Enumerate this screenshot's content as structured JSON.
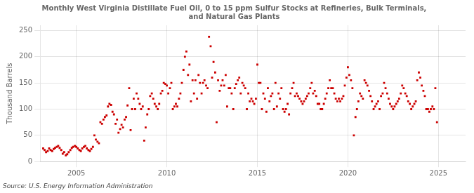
{
  "chart_data": {
    "type": "scatter",
    "title": "Monthly West Virginia Distillate Fuel Oil, 0 to 15 ppm Sulfur Stocks at Refineries, Bulk Terminals,\nand Natural Gas Plants",
    "ylabel": "Thousand Barrels",
    "annotations": [
      "Source: U.S. Energy Information Administration"
    ],
    "color": "#cc0000",
    "marker": "square",
    "grid": true,
    "xlim": [
      2003.0,
      2026.5
    ],
    "ylim": [
      0,
      260
    ],
    "xticks": [
      2005,
      2010,
      2015,
      2020,
      2025
    ],
    "yticks": [
      0,
      50,
      100,
      150,
      200,
      250
    ],
    "x": [
      2003.17,
      2003.25,
      2003.33,
      2003.42,
      2003.5,
      2003.58,
      2003.67,
      2003.75,
      2003.83,
      2003.92,
      2004.0,
      2004.08,
      2004.17,
      2004.25,
      2004.33,
      2004.42,
      2004.5,
      2004.58,
      2004.67,
      2004.75,
      2004.83,
      2004.92,
      2005.0,
      2005.08,
      2005.17,
      2005.25,
      2005.33,
      2005.42,
      2005.5,
      2005.58,
      2005.67,
      2005.75,
      2005.83,
      2005.92,
      2006.0,
      2006.08,
      2006.17,
      2006.25,
      2006.33,
      2006.42,
      2006.5,
      2006.58,
      2006.67,
      2006.75,
      2006.83,
      2006.92,
      2007.0,
      2007.08,
      2007.17,
      2007.25,
      2007.33,
      2007.42,
      2007.5,
      2007.58,
      2007.67,
      2007.75,
      2007.83,
      2007.92,
      2008.0,
      2008.08,
      2008.17,
      2008.25,
      2008.33,
      2008.42,
      2008.5,
      2008.58,
      2008.67,
      2008.75,
      2008.83,
      2008.92,
      2009.0,
      2009.08,
      2009.17,
      2009.25,
      2009.33,
      2009.42,
      2009.5,
      2009.58,
      2009.67,
      2009.75,
      2009.83,
      2009.92,
      2010.0,
      2010.08,
      2010.17,
      2010.25,
      2010.33,
      2010.42,
      2010.5,
      2010.58,
      2010.67,
      2010.75,
      2010.83,
      2010.92,
      2011.0,
      2011.08,
      2011.17,
      2011.25,
      2011.33,
      2011.42,
      2011.5,
      2011.58,
      2011.67,
      2011.75,
      2011.83,
      2011.92,
      2012.0,
      2012.08,
      2012.17,
      2012.25,
      2012.33,
      2012.42,
      2012.5,
      2012.58,
      2012.67,
      2012.75,
      2012.83,
      2012.92,
      2013.0,
      2013.08,
      2013.17,
      2013.25,
      2013.33,
      2013.42,
      2013.5,
      2013.58,
      2013.67,
      2013.75,
      2013.83,
      2013.92,
      2014.0,
      2014.08,
      2014.17,
      2014.25,
      2014.33,
      2014.42,
      2014.5,
      2014.58,
      2014.67,
      2014.75,
      2014.83,
      2014.92,
      2015.0,
      2015.08,
      2015.17,
      2015.25,
      2015.33,
      2015.42,
      2015.5,
      2015.58,
      2015.67,
      2015.75,
      2015.83,
      2015.92,
      2016.0,
      2016.08,
      2016.17,
      2016.25,
      2016.33,
      2016.42,
      2016.5,
      2016.58,
      2016.67,
      2016.75,
      2016.83,
      2016.92,
      2017.0,
      2017.08,
      2017.17,
      2017.25,
      2017.33,
      2017.42,
      2017.5,
      2017.58,
      2017.67,
      2017.75,
      2017.83,
      2017.92,
      2018.0,
      2018.08,
      2018.17,
      2018.25,
      2018.33,
      2018.42,
      2018.5,
      2018.58,
      2018.67,
      2018.75,
      2018.83,
      2018.92,
      2019.0,
      2019.08,
      2019.17,
      2019.25,
      2019.33,
      2019.42,
      2019.5,
      2019.58,
      2019.67,
      2019.75,
      2019.83,
      2019.92,
      2020.0,
      2020.08,
      2020.17,
      2020.25,
      2020.33,
      2020.42,
      2020.5,
      2020.58,
      2020.67,
      2020.75,
      2020.83,
      2020.92,
      2021.0,
      2021.08,
      2021.17,
      2021.25,
      2021.33,
      2021.42,
      2021.5,
      2021.58,
      2021.67,
      2021.75,
      2021.83,
      2021.92,
      2022.0,
      2022.08,
      2022.17,
      2022.25,
      2022.33,
      2022.42,
      2022.5,
      2022.58,
      2022.67,
      2022.75,
      2022.83,
      2022.92,
      2023.0,
      2023.08,
      2023.17,
      2023.25,
      2023.33,
      2023.42,
      2023.5,
      2023.58,
      2023.67,
      2023.75,
      2023.83,
      2023.92,
      2024.0,
      2024.08,
      2024.17,
      2024.25,
      2024.33,
      2024.42,
      2024.5,
      2024.58,
      2024.67,
      2024.75,
      2024.83,
      2024.92
    ],
    "values": [
      25,
      22,
      18,
      20,
      25,
      22,
      20,
      24,
      26,
      28,
      30,
      26,
      22,
      15,
      18,
      12,
      14,
      18,
      22,
      26,
      28,
      30,
      28,
      25,
      22,
      20,
      25,
      28,
      30,
      25,
      22,
      20,
      24,
      28,
      50,
      42,
      38,
      35,
      75,
      72,
      80,
      85,
      88,
      105,
      110,
      108,
      95,
      90,
      72,
      80,
      55,
      62,
      70,
      65,
      80,
      85,
      107,
      140,
      60,
      100,
      120,
      100,
      130,
      120,
      110,
      100,
      105,
      40,
      65,
      90,
      100,
      125,
      130,
      120,
      110,
      105,
      100,
      110,
      130,
      135,
      150,
      148,
      145,
      130,
      140,
      150,
      100,
      105,
      110,
      105,
      120,
      130,
      150,
      175,
      200,
      210,
      165,
      185,
      115,
      155,
      130,
      155,
      120,
      165,
      150,
      130,
      150,
      155,
      145,
      140,
      238,
      220,
      160,
      190,
      170,
      75,
      155,
      135,
      145,
      155,
      145,
      165,
      105,
      140,
      140,
      130,
      100,
      140,
      148,
      155,
      160,
      130,
      150,
      145,
      140,
      100,
      130,
      115,
      120,
      115,
      110,
      120,
      185,
      150,
      150,
      100,
      130,
      120,
      95,
      140,
      115,
      125,
      130,
      100,
      150,
      105,
      130,
      120,
      140,
      100,
      95,
      100,
      110,
      90,
      130,
      140,
      150,
      125,
      130,
      125,
      120,
      115,
      110,
      115,
      120,
      125,
      130,
      140,
      150,
      130,
      135,
      125,
      110,
      110,
      100,
      100,
      110,
      120,
      130,
      140,
      155,
      140,
      140,
      130,
      120,
      115,
      120,
      115,
      120,
      125,
      145,
      160,
      180,
      165,
      155,
      140,
      50,
      85,
      100,
      115,
      130,
      125,
      120,
      155,
      150,
      145,
      135,
      125,
      115,
      100,
      105,
      110,
      115,
      100,
      125,
      130,
      150,
      140,
      130,
      120,
      110,
      105,
      100,
      105,
      110,
      115,
      120,
      130,
      145,
      140,
      130,
      125,
      115,
      110,
      100,
      105,
      110,
      115,
      155,
      170,
      160,
      145,
      135,
      125,
      100,
      100,
      95,
      100,
      105,
      100,
      140,
      75
    ]
  }
}
